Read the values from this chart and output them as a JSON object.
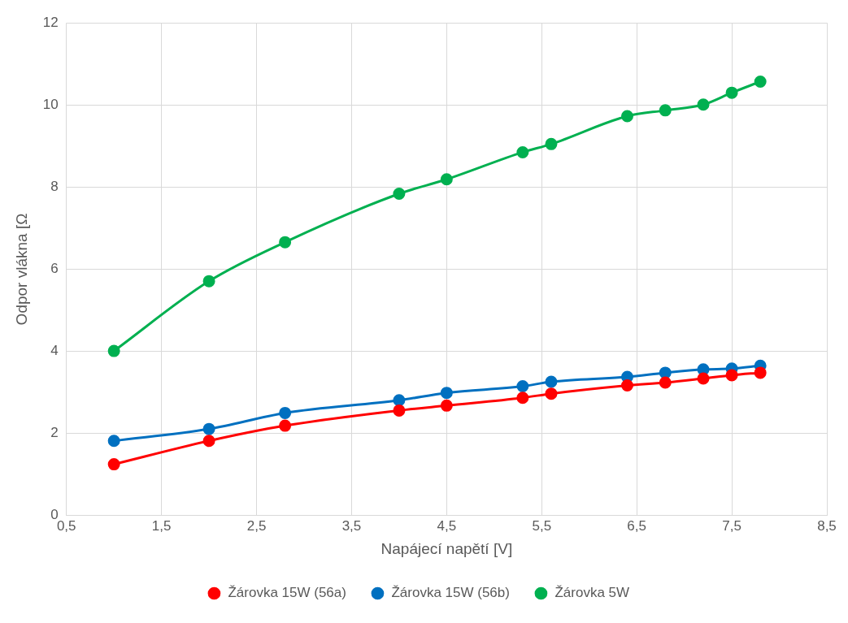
{
  "chart_data": {
    "type": "line",
    "xlabel": "Napájecí napětí [V]",
    "ylabel": "Odpor vlákna [Ω",
    "x": [
      1,
      2,
      2.8,
      4,
      4.5,
      5.3,
      5.6,
      6.4,
      6.8,
      7.2,
      7.5,
      7.8
    ],
    "series": [
      {
        "name": "Žárovka 15W (56a)",
        "color": "#ff0000",
        "values": [
          1.25,
          1.82,
          2.19,
          2.56,
          2.68,
          2.87,
          2.97,
          3.17,
          3.24,
          3.34,
          3.42,
          3.48
        ]
      },
      {
        "name": "Žárovka 15W (56b)",
        "color": "#0070c0",
        "values": [
          1.82,
          2.11,
          2.5,
          2.81,
          2.99,
          3.15,
          3.26,
          3.38,
          3.48,
          3.56,
          3.58,
          3.65
        ]
      },
      {
        "name": "Žárovka 5W",
        "color": "#00b050",
        "values": [
          4.01,
          5.71,
          6.66,
          7.84,
          8.19,
          8.85,
          9.05,
          9.73,
          9.87,
          10.01,
          10.3,
          10.57
        ]
      }
    ],
    "xlim": [
      0.5,
      8.5
    ],
    "xticks": [
      {
        "value": 0.5,
        "label": "0,5"
      },
      {
        "value": 1.5,
        "label": "1,5"
      },
      {
        "value": 2.5,
        "label": "2,5"
      },
      {
        "value": 3.5,
        "label": "3,5"
      },
      {
        "value": 4.5,
        "label": "4,5"
      },
      {
        "value": 5.5,
        "label": "5,5"
      },
      {
        "value": 6.5,
        "label": "6,5"
      },
      {
        "value": 7.5,
        "label": "7,5"
      },
      {
        "value": 8.5,
        "label": "8,5"
      }
    ],
    "ylim": [
      0,
      12
    ],
    "yticks": [
      0,
      2,
      4,
      6,
      8,
      10,
      12
    ],
    "grid": true,
    "legend": "bottom",
    "marker": "circle",
    "line_style": "solid"
  }
}
